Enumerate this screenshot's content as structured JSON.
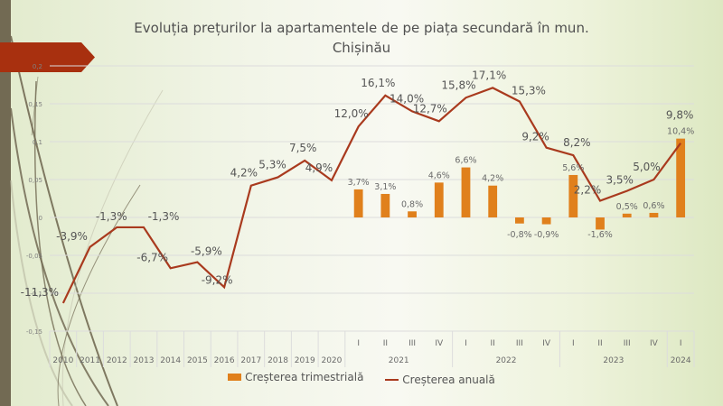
{
  "title_line1": "Evoluția prețurilor la apartamentele  de pe piața secundară în mun.",
  "title_line2": "Chișinău",
  "colors": {
    "bar": "#e0801c",
    "line": "#a93a1e",
    "accent": "#a93a1e",
    "sidebar": "#726a53"
  },
  "chart_data": {
    "type": "bar+line",
    "title": "Evoluția prețurilor la apartamentele  de pe piața secundară în mun. Chișinău",
    "ylim": [
      -0.15,
      0.2
    ],
    "yticks": [
      "0,2",
      "0,15",
      "0,1",
      "0,05",
      "0",
      "-0,05",
      "-0,1",
      "-0,15"
    ],
    "ytick_values": [
      0.2,
      0.15,
      0.1,
      0.05,
      0,
      -0.05,
      -0.1,
      -0.15
    ],
    "grid": true,
    "legend_position": "bottom",
    "categories": [
      "2010",
      "2011",
      "2012",
      "2013",
      "2014",
      "2015",
      "2016",
      "2017",
      "2018",
      "2019",
      "2020",
      "I",
      "II",
      "III",
      "IV",
      "I",
      "II",
      "III",
      "IV",
      "I",
      "II",
      "III",
      "IV",
      "I"
    ],
    "category_groups": [
      {
        "label": "2021",
        "count": 4
      },
      {
        "label": "2022",
        "count": 4
      },
      {
        "label": "2023",
        "count": 4
      },
      {
        "label": "2024",
        "count": 1
      }
    ],
    "series": [
      {
        "name": "Creșterea trimestrială",
        "type": "bar",
        "values": [
          null,
          null,
          null,
          null,
          null,
          null,
          null,
          null,
          null,
          null,
          null,
          0.037,
          0.031,
          0.008,
          0.046,
          0.066,
          0.042,
          -0.008,
          -0.009,
          0.056,
          -0.016,
          0.005,
          0.006,
          0.104
        ],
        "labels": [
          null,
          null,
          null,
          null,
          null,
          null,
          null,
          null,
          null,
          null,
          null,
          "3,7%",
          "3,1%",
          "0,8%",
          "4,6%",
          "6,6%",
          "4,2%",
          "-0,8%",
          "-0,9%",
          "5,6%",
          "-1,6%",
          "0,5%",
          "0,6%",
          "10,4%"
        ]
      },
      {
        "name": "Creșterea anuală",
        "type": "line",
        "values": [
          -0.113,
          -0.039,
          -0.013,
          -0.013,
          -0.067,
          -0.059,
          -0.092,
          0.042,
          0.053,
          0.075,
          0.049,
          0.12,
          0.161,
          0.14,
          0.127,
          0.158,
          0.171,
          0.153,
          0.092,
          0.082,
          0.022,
          0.035,
          0.05,
          0.098
        ],
        "labels": [
          "-11,3%",
          "-3,9%",
          "-1,3%",
          "-1,3%",
          "-6,7%",
          "-5,9%",
          "-9,2%",
          "4,2%",
          "5,3%",
          "7,5%",
          "4,9%",
          "12,0%",
          "16,1%",
          "14,0%",
          "12,7%",
          "15,8%",
          "17,1%",
          "15,3%",
          "9,2%",
          "8,2%",
          "2,2%",
          "3,5%",
          "5,0%",
          "9,8%"
        ]
      }
    ]
  },
  "legend": [
    {
      "label": "Creșterea trimestrială",
      "type": "bar"
    },
    {
      "label": "Creșterea anuală",
      "type": "line"
    }
  ]
}
